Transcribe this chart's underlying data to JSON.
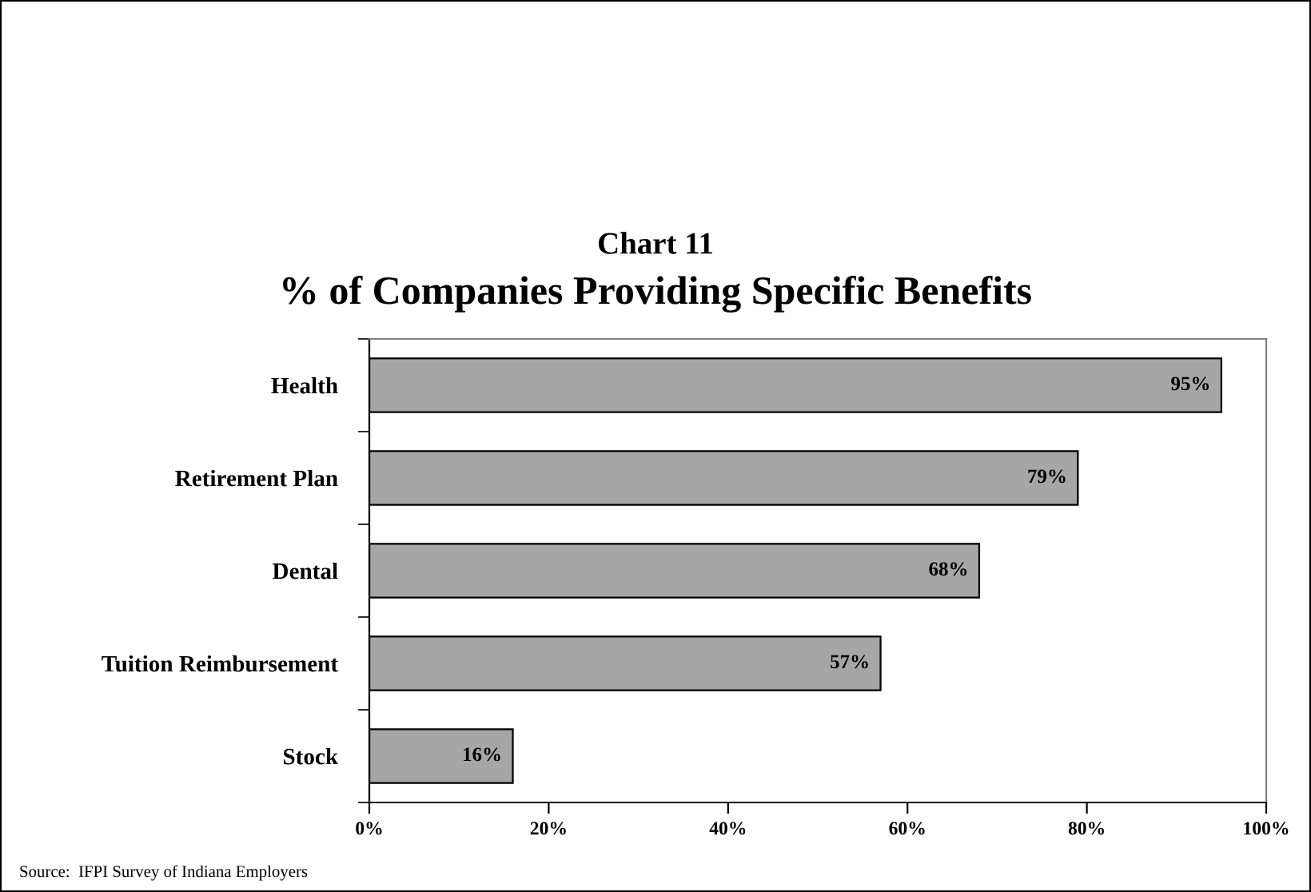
{
  "chart_data": {
    "type": "bar",
    "orientation": "horizontal",
    "title": "Chart 11",
    "subtitle": "% of Companies Providing Specific Benefits",
    "categories": [
      "Health",
      "Retirement Plan",
      "Dental",
      "Tuition Reimbursement",
      "Stock"
    ],
    "values": [
      95,
      79,
      68,
      57,
      16
    ],
    "value_labels": [
      "95%",
      "79%",
      "68%",
      "57%",
      "16%"
    ],
    "color": "#a6a6a6",
    "xlim": [
      0,
      100
    ],
    "xticks": [
      {
        "value": 0,
        "label": "0%"
      },
      {
        "value": 20,
        "label": "20%"
      },
      {
        "value": 40,
        "label": "40%"
      },
      {
        "value": 60,
        "label": "60%"
      },
      {
        "value": 80,
        "label": "80%"
      },
      {
        "value": 100,
        "label": "100%"
      }
    ],
    "grid": false,
    "annotations": [
      "Source:  IFPI Survey of Indiana Employers"
    ]
  }
}
